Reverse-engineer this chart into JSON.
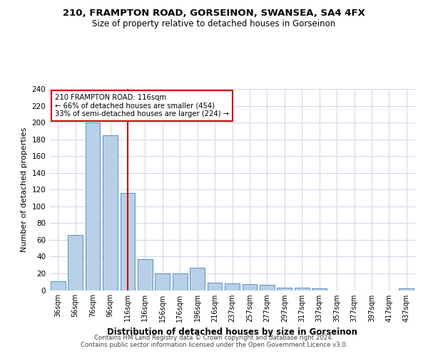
{
  "title_line1": "210, FRAMPTON ROAD, GORSEINON, SWANSEA, SA4 4FX",
  "title_line2": "Size of property relative to detached houses in Gorseinon",
  "xlabel": "Distribution of detached houses by size in Gorseinon",
  "ylabel": "Number of detached properties",
  "bar_labels": [
    "36sqm",
    "56sqm",
    "76sqm",
    "96sqm",
    "116sqm",
    "136sqm",
    "156sqm",
    "176sqm",
    "196sqm",
    "216sqm",
    "237sqm",
    "257sqm",
    "277sqm",
    "297sqm",
    "317sqm",
    "337sqm",
    "357sqm",
    "377sqm",
    "397sqm",
    "417sqm",
    "437sqm"
  ],
  "bar_values": [
    11,
    66,
    200,
    185,
    116,
    37,
    20,
    20,
    27,
    9,
    8,
    7,
    6,
    3,
    3,
    2,
    0,
    0,
    0,
    0,
    2
  ],
  "bar_color": "#b8cfe8",
  "bar_edge_color": "#5a8fc0",
  "property_line_index": 4,
  "annotation_line1": "210 FRAMPTON ROAD: 116sqm",
  "annotation_line2": "← 66% of detached houses are smaller (454)",
  "annotation_line3": "33% of semi-detached houses are larger (224) →",
  "vline_color": "#cc0000",
  "annotation_box_color": "#cc0000",
  "ylim": [
    0,
    240
  ],
  "yticks": [
    0,
    20,
    40,
    60,
    80,
    100,
    120,
    140,
    160,
    180,
    200,
    220,
    240
  ],
  "grid_color": "#d0d8e8",
  "background_color": "#ffffff",
  "footer_line1": "Contains HM Land Registry data © Crown copyright and database right 2024.",
  "footer_line2": "Contains public sector information licensed under the Open Government Licence v3.0."
}
